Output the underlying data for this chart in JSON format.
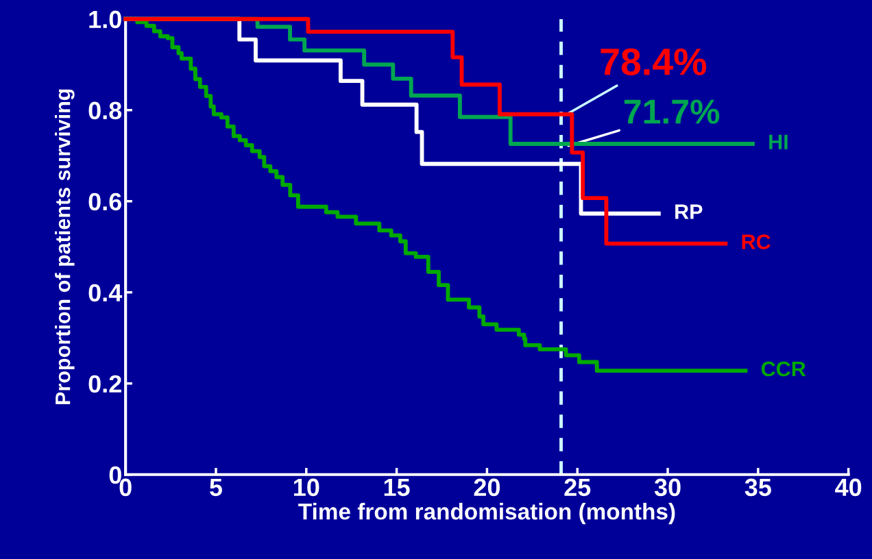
{
  "chart_data": {
    "type": "step",
    "xlabel": "Time from randomisation (months)",
    "ylabel": "Proportion of patients surviving",
    "xlim": [
      0,
      40
    ],
    "xticks": [
      0,
      5,
      10,
      15,
      20,
      25,
      30,
      35,
      40
    ],
    "ylim": [
      0,
      1
    ],
    "yticks": [
      0,
      0.2,
      0.4,
      0.6,
      0.8,
      {
        "value": 1,
        "label": "1.0"
      }
    ],
    "grid": false,
    "legend": false,
    "marker": "none",
    "line_style": "solid",
    "series": [
      {
        "name": "RC",
        "color": "#ff0000",
        "x": [
          0,
          10.1,
          18.1,
          18.6,
          20.7,
          24.7,
          25.3,
          26.6,
          33.2
        ],
        "values": [
          1.0,
          0.972,
          0.916,
          0.856,
          0.791,
          0.707,
          0.607,
          0.507,
          0.507
        ]
      },
      {
        "name": "HI",
        "color": "#00a651",
        "x": [
          0,
          7.3,
          9.1,
          9.9,
          13.2,
          14.8,
          15.8,
          18.5,
          21.3,
          34.7
        ],
        "values": [
          1.0,
          0.983,
          0.955,
          0.931,
          0.9,
          0.869,
          0.832,
          0.785,
          0.726,
          0.726
        ]
      },
      {
        "name": "RP",
        "color": "#ffffff",
        "x": [
          0,
          6.3,
          7.2,
          11.9,
          13.1,
          16.1,
          16.4,
          25.2,
          29.5
        ],
        "values": [
          1.0,
          0.955,
          0.909,
          0.864,
          0.812,
          0.752,
          0.682,
          0.573,
          0.573
        ]
      },
      {
        "name": "CCR",
        "color": "#00aa00",
        "x": [
          0,
          0.65,
          1.16,
          1.58,
          1.92,
          2.34,
          2.59,
          2.93,
          3.1,
          3.61,
          3.86,
          4.12,
          4.46,
          4.71,
          4.88,
          5.3,
          5.64,
          5.98,
          6.32,
          6.66,
          7.0,
          7.42,
          7.67,
          8.01,
          8.35,
          8.69,
          9.11,
          9.55,
          11.1,
          11.73,
          12.75,
          14.04,
          14.7,
          15.2,
          15.5,
          16.06,
          16.75,
          17.33,
          17.84,
          19.0,
          19.58,
          19.8,
          20.53,
          21.76,
          22.05,
          22.12,
          22.92,
          24.37,
          25.1,
          26.08,
          34.3
        ],
        "values": [
          1.0,
          0.993,
          0.985,
          0.973,
          0.962,
          0.958,
          0.938,
          0.925,
          0.913,
          0.891,
          0.868,
          0.851,
          0.831,
          0.808,
          0.791,
          0.784,
          0.764,
          0.743,
          0.734,
          0.723,
          0.71,
          0.697,
          0.677,
          0.666,
          0.653,
          0.636,
          0.613,
          0.588,
          0.576,
          0.566,
          0.551,
          0.536,
          0.525,
          0.512,
          0.486,
          0.478,
          0.445,
          0.416,
          0.384,
          0.367,
          0.347,
          0.33,
          0.318,
          0.307,
          0.298,
          0.284,
          0.275,
          0.262,
          0.247,
          0.228,
          0.228
        ]
      }
    ],
    "ref_lines": [
      {
        "axis": "x",
        "value": 24.1,
        "color": "#ccffff",
        "line_style": "dashed"
      }
    ],
    "annotations": [
      {
        "text": "78.4%",
        "x": 24.1,
        "y": 0.784
      },
      {
        "text": "71.7%",
        "x": 24.1,
        "y": 0.717
      }
    ]
  }
}
